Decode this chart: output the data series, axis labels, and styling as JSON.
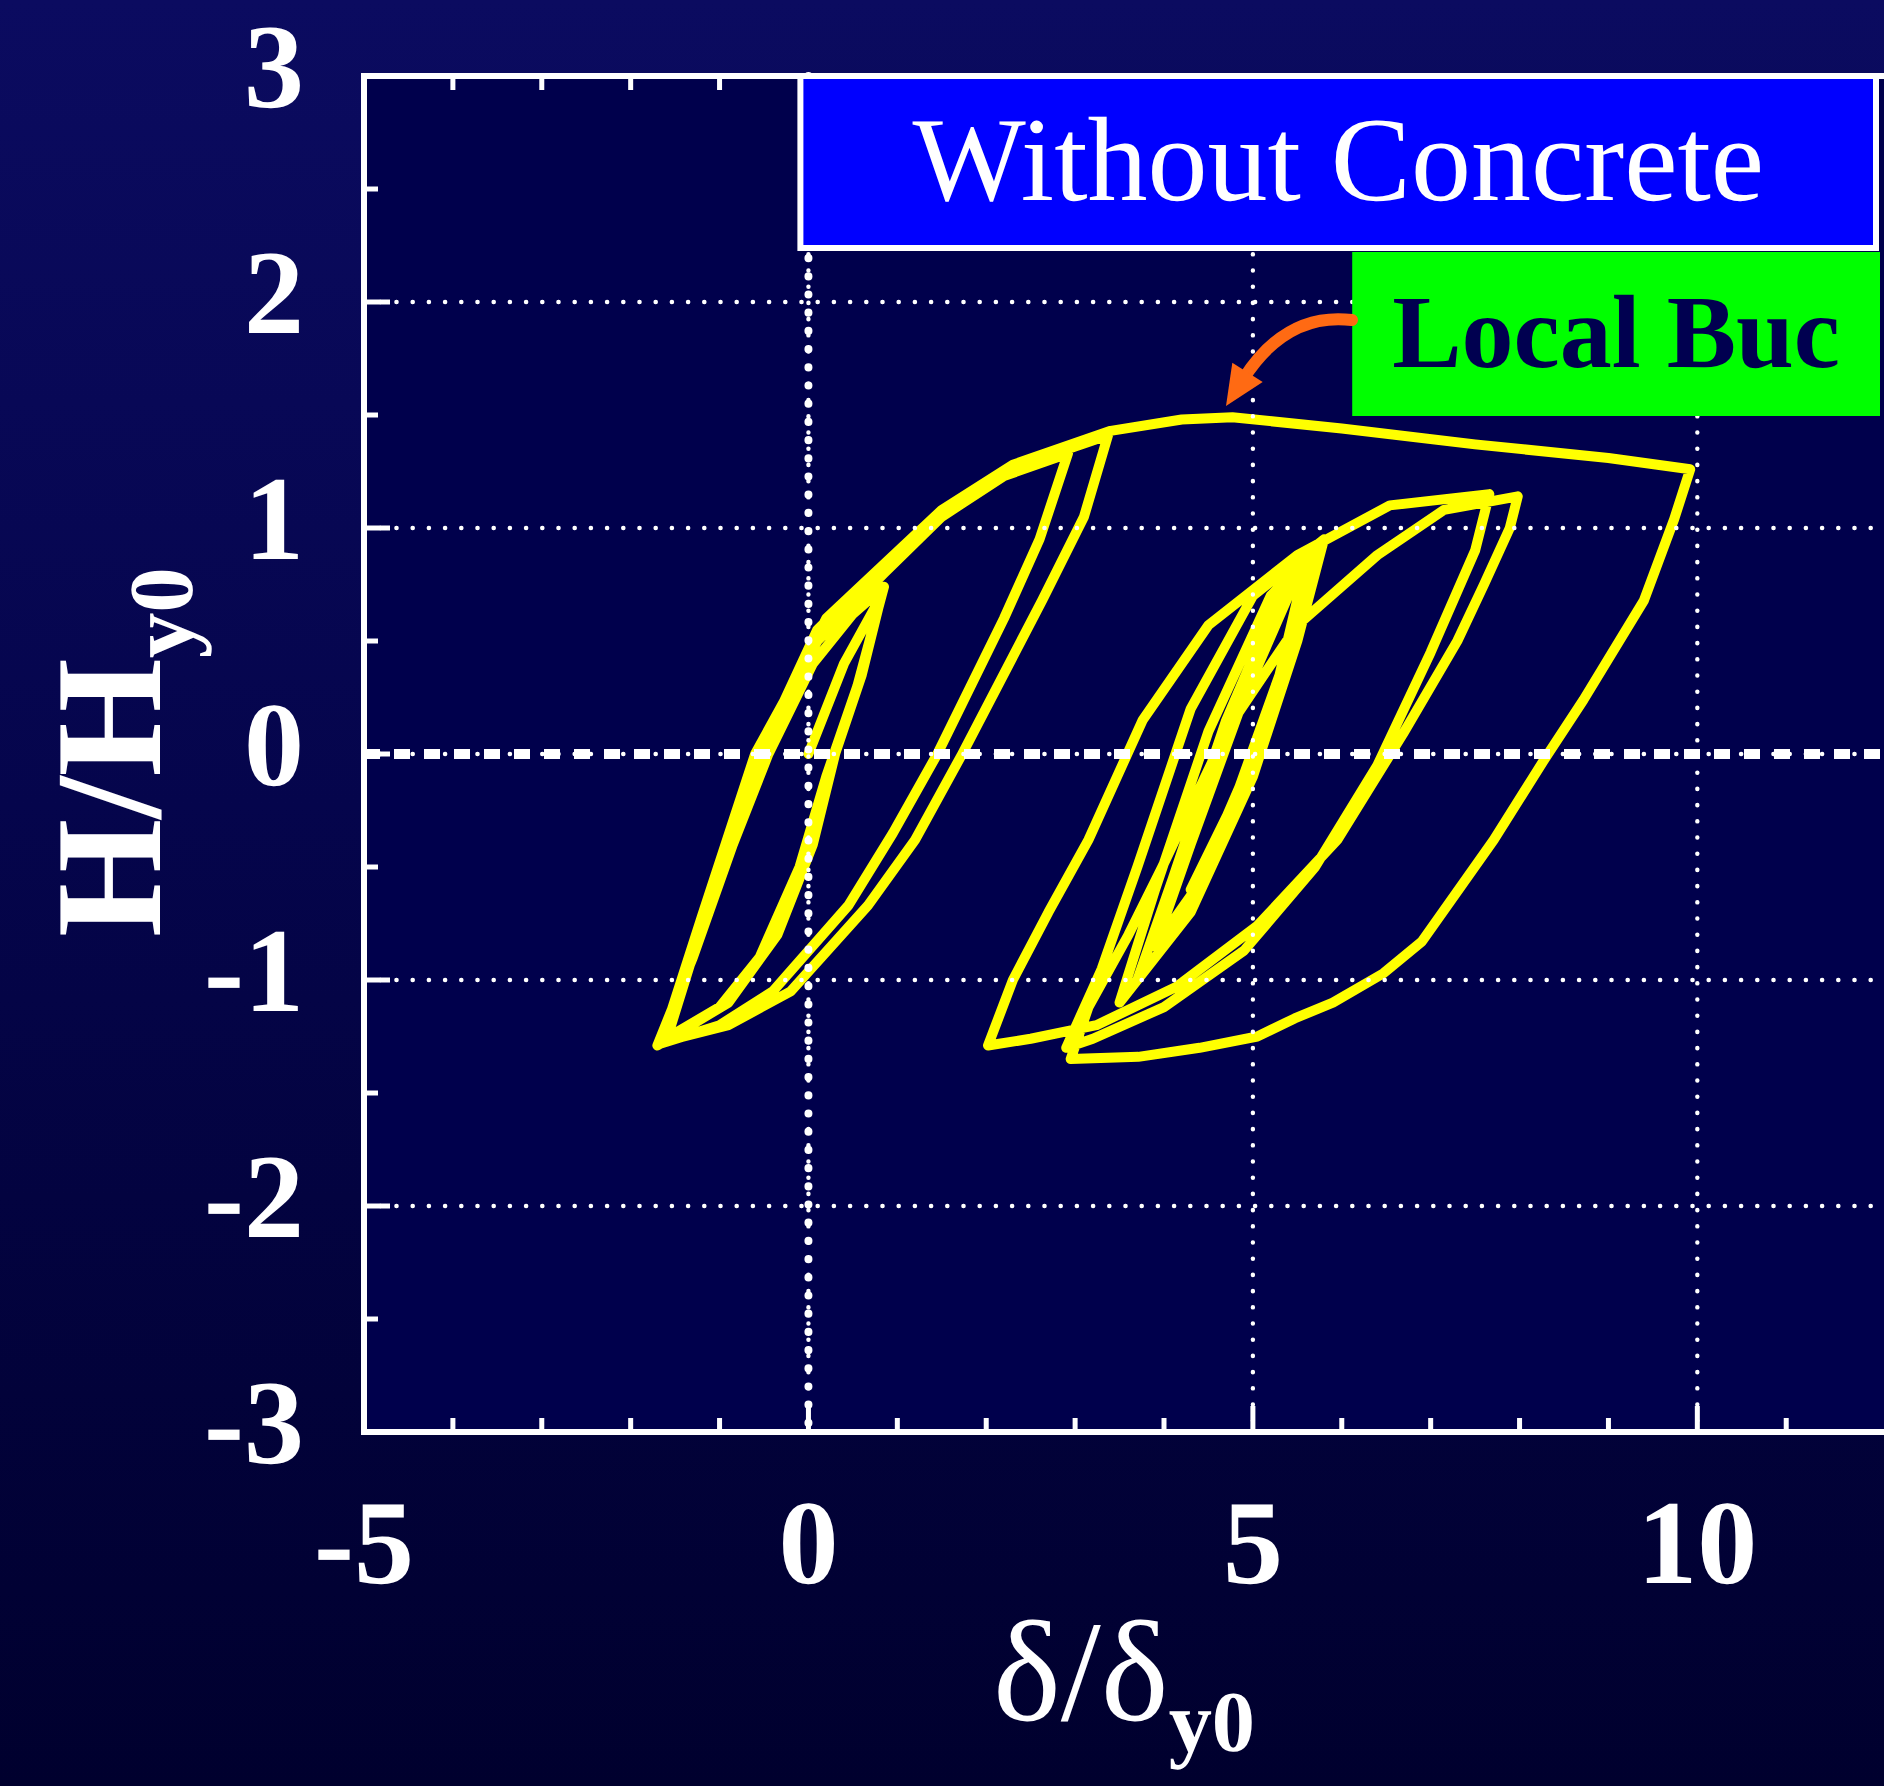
{
  "chart_data": {
    "type": "line",
    "title": "Without Concrete",
    "xlabel": "δ/δ$_{y0}$",
    "ylabel": "H/H$_{y0}$",
    "annotations": [
      {
        "text": "Local Buc",
        "x": 4.7,
        "y": 1.5
      }
    ],
    "xlim": [
      -5,
      12.1
    ],
    "ylim": [
      -3,
      3
    ],
    "xticks": [
      -5,
      {
        "value": -4,
        "label": null
      },
      {
        "value": -3,
        "label": null
      },
      {
        "value": -2,
        "label": null
      },
      {
        "value": -1,
        "label": null
      },
      0,
      {
        "value": 1,
        "label": null
      },
      {
        "value": 2,
        "label": null
      },
      {
        "value": 3,
        "label": null
      },
      {
        "value": 4,
        "label": null
      },
      5,
      {
        "value": 6,
        "label": null
      },
      {
        "value": 7,
        "label": null
      },
      {
        "value": 8,
        "label": null
      },
      {
        "value": 9,
        "label": null
      },
      10,
      {
        "value": 11,
        "label": null
      }
    ],
    "yticks": [
      -3,
      {
        "value": -2.5,
        "label": null
      },
      -2,
      {
        "value": -1.5,
        "label": null
      },
      -1,
      {
        "value": -0.5,
        "label": null
      },
      0,
      {
        "value": 0.5,
        "label": null
      },
      1,
      {
        "value": 1.5,
        "label": null
      },
      2,
      {
        "value": 2.5,
        "label": null
      },
      3
    ],
    "grid": true,
    "ref_lines": [
      {
        "axis": "x",
        "value": 0,
        "color": "#ffffff",
        "line_style": "dotted"
      },
      {
        "axis": "y",
        "value": 0,
        "color": "#ffffff",
        "line_style": "dashed"
      }
    ],
    "color": "#ffff00",
    "x": [
      0,
      0.4,
      0.82,
      0.6,
      0.3,
      0.05,
      -0.35,
      -0.9,
      -1.7,
      -1.3,
      -0.85,
      -0.45,
      0.05,
      0.5,
      0.85,
      0.55,
      0.2,
      -0.1,
      -0.55,
      -1.0,
      -1.65,
      -1.2,
      -0.6,
      0.1,
      0.85,
      1.5,
      2.2,
      2.92,
      2.6,
      2.2,
      1.45,
      0.95,
      0.45,
      -0.4,
      -1.0,
      -1.65,
      -1.2,
      -0.55,
      0.1,
      0.8,
      1.5,
      2.4,
      3.37,
      3.1,
      2.63,
      1.73,
      1.2,
      0.67,
      -0.2,
      -0.9,
      -1.6,
      -1.15,
      -0.5,
      0.2,
      0.85,
      1.5,
      2.3,
      3.4,
      4.2,
      4.77,
      6.0,
      7.5,
      9.0,
      9.92,
      9.74,
      9.4,
      8.72,
      8.27,
      7.71,
      7.35,
      6.9,
      6.47,
      5.9,
      5.47,
      5.05,
      4.4,
      3.71,
      2.95,
      3.15,
      3.6,
      3.98,
      4.73,
      5.5,
      6.4,
      7.15,
      7.98,
      7.89,
      7.6,
      7.3,
      6.69,
      5.95,
      5.05,
      4.14,
      3.24,
      2.5,
      2.02,
      2.3,
      2.7,
      3.15,
      3.76,
      4.5,
      5.5,
      6.54,
      7.66,
      7.5,
      7.0,
      6.4,
      5.7,
      4.9,
      4.0,
      3.2,
      2.9,
      3.3,
      3.7,
      4.3,
      5.0,
      5.8,
      5.5,
      5.0,
      4.3,
      3.5,
      3.9,
      4.5,
      5.2,
      5.75,
      5.4,
      4.85,
      4.2,
      3.7,
      4.1,
      4.7,
      5.3,
      5.65,
      5.35,
      4.9,
      4.35,
      3.9,
      4.3,
      4.9,
      5.4,
      5.6,
      5.3,
      4.8,
      4.3
    ],
    "values": [
      0,
      0.4,
      0.7,
      0.35,
      0,
      -0.4,
      -0.8,
      -1.1,
      -1.29,
      -0.9,
      -0.4,
      0,
      0.4,
      0.62,
      0.74,
      0.3,
      -0.1,
      -0.5,
      -0.9,
      -1.12,
      -1.27,
      -0.72,
      0,
      0.5,
      0.8,
      1.05,
      1.23,
      1.33,
      0.95,
      0.6,
      0,
      -0.35,
      -0.67,
      -1.05,
      -1.2,
      -1.28,
      -0.75,
      0,
      0.55,
      0.82,
      1.07,
      1.28,
      1.41,
      1.05,
      0.68,
      0,
      -0.38,
      -0.67,
      -1.05,
      -1.2,
      -1.27,
      -0.7,
      0.05,
      0.6,
      0.84,
      1.08,
      1.28,
      1.43,
      1.48,
      1.49,
      1.44,
      1.37,
      1.31,
      1.26,
      1.04,
      0.68,
      0.24,
      -0.03,
      -0.38,
      -0.58,
      -0.83,
      -0.97,
      -1.1,
      -1.17,
      -1.25,
      -1.3,
      -1.34,
      -1.35,
      -1.12,
      -0.8,
      -0.5,
      0.12,
      0.57,
      0.88,
      1.08,
      1.14,
      1.0,
      0.75,
      0.5,
      0.09,
      -0.38,
      -0.76,
      -1.03,
      -1.2,
      -1.26,
      -1.29,
      -1.0,
      -0.7,
      -0.38,
      0.15,
      0.57,
      0.88,
      1.1,
      1.15,
      0.9,
      0.45,
      -0.05,
      -0.5,
      -0.87,
      -1.12,
      -1.26,
      -1.3,
      -0.95,
      -0.5,
      0.2,
      0.7,
      0.95,
      0.5,
      -0.1,
      -0.7,
      -1.1,
      -0.6,
      0.1,
      0.7,
      0.92,
      0.45,
      -0.15,
      -0.75,
      -1.0,
      -0.55,
      0.15,
      0.7,
      0.88,
      0.4,
      -0.1,
      -0.6,
      -0.85,
      -0.4,
      0.25,
      0.7,
      0.85,
      0.35,
      -0.2,
      -0.6
    ]
  }
}
